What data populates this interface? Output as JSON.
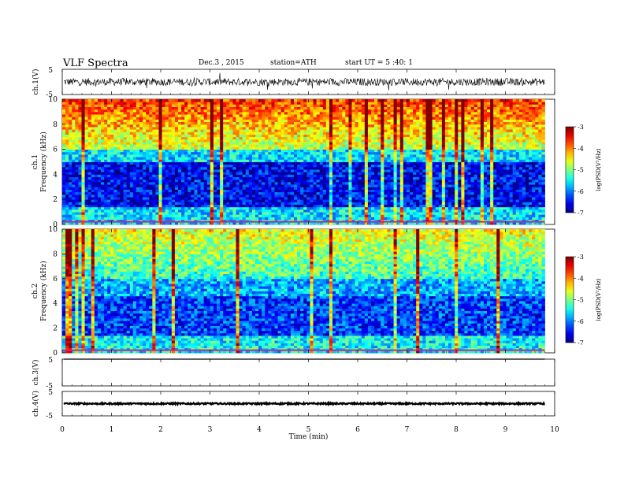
{
  "header": {
    "title": "VLF  Spectra",
    "date": "Dec.3  , 2015",
    "station": "station=ATH",
    "start": "start  UT =   5 :40: 1"
  },
  "chart_data": [
    {
      "type": "line",
      "name": "ch1-waveform",
      "ylabel": "ch.1(V)",
      "ylim": [
        -5,
        5
      ],
      "yticks": [
        "5",
        "-5"
      ],
      "xlim": [
        0,
        10
      ],
      "baseline": 0,
      "amplitude": 1.5,
      "color": "#000000"
    },
    {
      "type": "heatmap",
      "name": "ch1-spectrogram",
      "ylabel_line1": "ch.1",
      "ylabel_line2": "Frequency  (kHz)",
      "ylim": [
        0,
        10
      ],
      "yticks": [
        "10",
        "8",
        "6",
        "4",
        "2",
        "0"
      ],
      "xlim": [
        0,
        10
      ],
      "data_end_min": 9.8,
      "colorbar": {
        "label": "log(PSD(V²/Hz)",
        "ticks": [
          "-3",
          "-4",
          "-5",
          "-6",
          "-7"
        ],
        "range": [
          -7,
          -3
        ]
      }
    },
    {
      "type": "heatmap",
      "name": "ch2-spectrogram",
      "ylabel_line1": "ch.2",
      "ylabel_line2": "Frequency  (kHz)",
      "ylim": [
        0,
        10
      ],
      "yticks": [
        "10",
        "8",
        "6",
        "4",
        "2",
        "0"
      ],
      "xlim": [
        0,
        10
      ],
      "data_end_min": 9.8,
      "colorbar": {
        "label": "log(PSD(V²/Hz)",
        "ticks": [
          "-3",
          "-4",
          "-5",
          "-6",
          "-7"
        ],
        "range": [
          -7,
          -3
        ]
      }
    },
    {
      "type": "line",
      "name": "ch3-waveform",
      "ylabel": "ch.3(V)",
      "ylim": [
        -5,
        5
      ],
      "yticks": [
        "5",
        "-5"
      ],
      "xlim": [
        0,
        10
      ],
      "baseline": 5,
      "amplitude": 0,
      "color": "#000000"
    },
    {
      "type": "line",
      "name": "ch4-waveform",
      "ylabel": "ch.4(V)",
      "ylim": [
        -5,
        5
      ],
      "yticks": [
        "5",
        "-5"
      ],
      "xlim": [
        0,
        10
      ],
      "baseline": 0,
      "amplitude": 0.3,
      "color": "#000000"
    }
  ],
  "xaxis": {
    "label": "Time  (min)",
    "ticks": [
      "0",
      "1",
      "2",
      "3",
      "4",
      "5",
      "6",
      "7",
      "8",
      "9",
      "10"
    ]
  }
}
